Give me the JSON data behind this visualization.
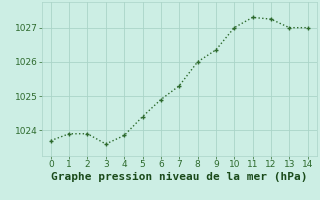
{
  "x": [
    0,
    1,
    2,
    3,
    4,
    5,
    6,
    7,
    8,
    9,
    10,
    11,
    12,
    13,
    14
  ],
  "y": [
    1023.7,
    1023.9,
    1023.9,
    1023.6,
    1023.85,
    1024.4,
    1024.9,
    1025.3,
    1026.0,
    1026.35,
    1027.0,
    1027.3,
    1027.25,
    1027.0,
    1027.0
  ],
  "line_color": "#2d6a2d",
  "marker_color": "#2d6a2d",
  "bg_color": "#cceee4",
  "grid_color": "#aad4c8",
  "xlabel": "Graphe pression niveau de la mer (hPa)",
  "xlabel_color": "#1a4a1a",
  "ylim": [
    1023.25,
    1027.75
  ],
  "yticks": [
    1024,
    1025,
    1026,
    1027
  ],
  "xticks": [
    0,
    1,
    2,
    3,
    4,
    5,
    6,
    7,
    8,
    9,
    10,
    11,
    12,
    13,
    14
  ],
  "tick_color": "#2d6a2d",
  "tick_fontsize": 6.5,
  "xlabel_fontsize": 8.0,
  "linewidth": 1.0,
  "markersize": 2.5
}
